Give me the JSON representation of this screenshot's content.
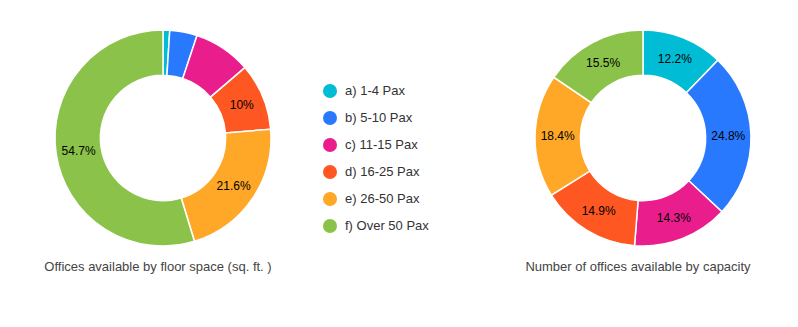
{
  "chart_data": [
    {
      "type": "pie",
      "title": "Offices available by floor space (sq. ft. )",
      "categories": [
        "a) 1-4 Pax",
        "b) 5-10 Pax",
        "c) 11-15 Pax",
        "d) 16-25 Pax",
        "e) 26-50 Pax",
        "f) Over 50 Pax"
      ],
      "values": [
        1.0,
        4.1,
        8.6,
        10.0,
        21.6,
        54.7
      ],
      "value_labels": [
        null,
        null,
        null,
        "10%",
        "21.6%",
        "54.7%"
      ],
      "colors": [
        "#00bcd4",
        "#2979ff",
        "#e91e8c",
        "#ff5722",
        "#ffa726",
        "#8bc34a"
      ],
      "data_labels": true,
      "legend": "right"
    },
    {
      "type": "pie",
      "title": "Number of offices available by capacity",
      "categories": [
        "a) 1-4 Pax",
        "b) 5-10 Pax",
        "c) 11-15 Pax",
        "d) 16-25 Pax",
        "e) 26-50 Pax",
        "f) Over 50 Pax"
      ],
      "values": [
        12.2,
        24.8,
        14.3,
        14.9,
        18.4,
        15.5
      ],
      "value_labels": [
        "12.2%",
        "24.8%",
        "14.3%",
        "14.9%",
        "18.4%",
        "15.5%"
      ],
      "colors": [
        "#00bcd4",
        "#2979ff",
        "#e91e8c",
        "#ff5722",
        "#ffa726",
        "#8bc34a"
      ],
      "data_labels": true
    }
  ]
}
